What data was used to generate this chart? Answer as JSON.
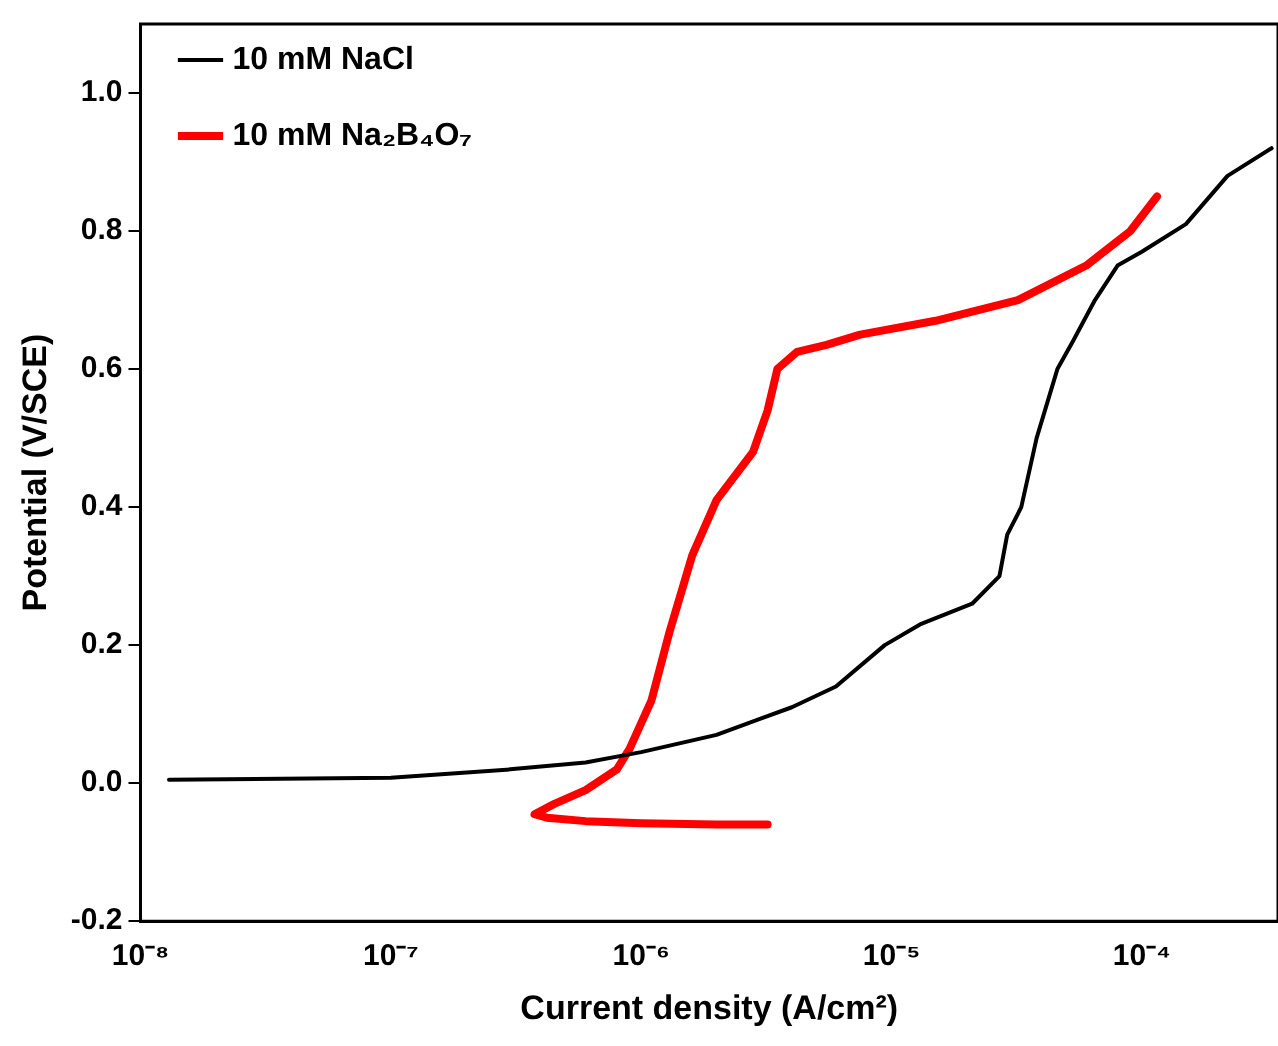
{
  "chart_data": {
    "type": "line",
    "xlabel": "Current density (A/cm²)",
    "ylabel": "Potential (V/SCE)",
    "log": "x",
    "xlim": [
      1e-08,
      0.00035
    ],
    "ylim": [
      -0.2,
      1.1
    ],
    "xticks": [
      {
        "value": 1e-08,
        "label": "10⁻⁸"
      },
      {
        "value": 1e-07,
        "label": "10⁻⁷"
      },
      {
        "value": 1e-06,
        "label": "10⁻⁶"
      },
      {
        "value": 1e-05,
        "label": "10⁻⁵"
      },
      {
        "value": 0.0001,
        "label": "10⁻⁴"
      }
    ],
    "yticks": [
      -0.2,
      {
        "value": 0,
        "label": "0.0"
      },
      0.2,
      0.4,
      0.6,
      0.8,
      {
        "value": 1,
        "label": "1.0"
      }
    ],
    "grid": false,
    "legend": "top left",
    "marker": "none",
    "line_style": "solid",
    "series": [
      {
        "name": "10 mM NaCl",
        "color": "#000000",
        "x": [
          1.3e-08,
          1e-07,
          3e-07,
          6e-07,
          1e-06,
          2e-06,
          4e-06,
          6e-06,
          9.4e-06,
          1.3e-05,
          2.1e-05,
          2.7e-05,
          2.9e-05,
          3.3e-05,
          3.8e-05,
          4.6e-05,
          5.3e-05,
          6.5e-05,
          8e-05,
          0.0001,
          0.00015,
          0.00022,
          0.00033
        ],
        "values": [
          0.005,
          0.008,
          0.02,
          0.03,
          0.045,
          0.07,
          0.11,
          0.14,
          0.2,
          0.23,
          0.26,
          0.3,
          0.36,
          0.4,
          0.5,
          0.6,
          0.64,
          0.7,
          0.75,
          0.77,
          0.81,
          0.88,
          0.92
        ]
      },
      {
        "name": "10 mM Na₂B₄O₇",
        "color": "#ff0000",
        "x": [
          3.2e-06,
          2e-06,
          1e-06,
          6e-07,
          4.2e-07,
          3.75e-07,
          4.5e-07,
          6e-07,
          8e-07,
          9e-07,
          1.1e-06,
          1.3e-06,
          1.6e-06,
          2e-06,
          2.8e-06,
          3.2e-06,
          3.5e-06,
          4.2e-06,
          5.5e-06,
          7.5e-06,
          1.5e-05,
          3.2e-05,
          6e-05,
          9e-05,
          0.000115
        ],
        "values": [
          -0.06,
          -0.06,
          -0.058,
          -0.055,
          -0.05,
          -0.045,
          -0.03,
          -0.01,
          0.02,
          0.05,
          0.12,
          0.22,
          0.33,
          0.41,
          0.48,
          0.54,
          0.6,
          0.625,
          0.635,
          0.65,
          0.67,
          0.7,
          0.75,
          0.8,
          0.85
        ]
      }
    ]
  }
}
